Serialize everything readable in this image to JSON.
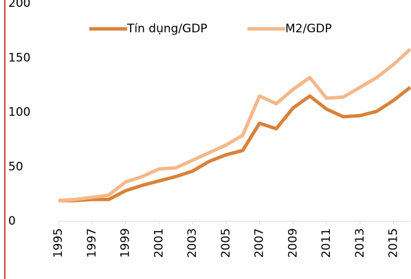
{
  "chart_data": {
    "type": "line",
    "x": [
      1995,
      1996,
      1997,
      1998,
      1999,
      2000,
      2001,
      2002,
      2003,
      2004,
      2005,
      2006,
      2007,
      2008,
      2009,
      2010,
      2011,
      2012,
      2013,
      2014,
      2015,
      2016
    ],
    "series": [
      {
        "name": "Tín dụng/GDP",
        "color": "#d9823b",
        "values": [
          19,
          19,
          20,
          20,
          28,
          33,
          37,
          41,
          46,
          55,
          61,
          65,
          90,
          85,
          104,
          115,
          103,
          96,
          97,
          101,
          111,
          123
        ]
      },
      {
        "name": "M2/GDP",
        "color": "#f5b88a",
        "values": [
          19,
          20,
          22,
          24,
          36,
          41,
          48,
          49,
          56,
          63,
          70,
          79,
          115,
          108,
          121,
          132,
          113,
          114,
          123,
          132,
          144,
          158
        ]
      }
    ],
    "xlim": [
      1995,
      2016
    ],
    "xticks": [
      1995,
      1997,
      1999,
      2001,
      2003,
      2005,
      2007,
      2009,
      2011,
      2013,
      2015
    ],
    "ylim": [
      0,
      200
    ],
    "yticks": [
      0,
      50,
      100,
      150,
      200
    ],
    "legend": "top"
  }
}
